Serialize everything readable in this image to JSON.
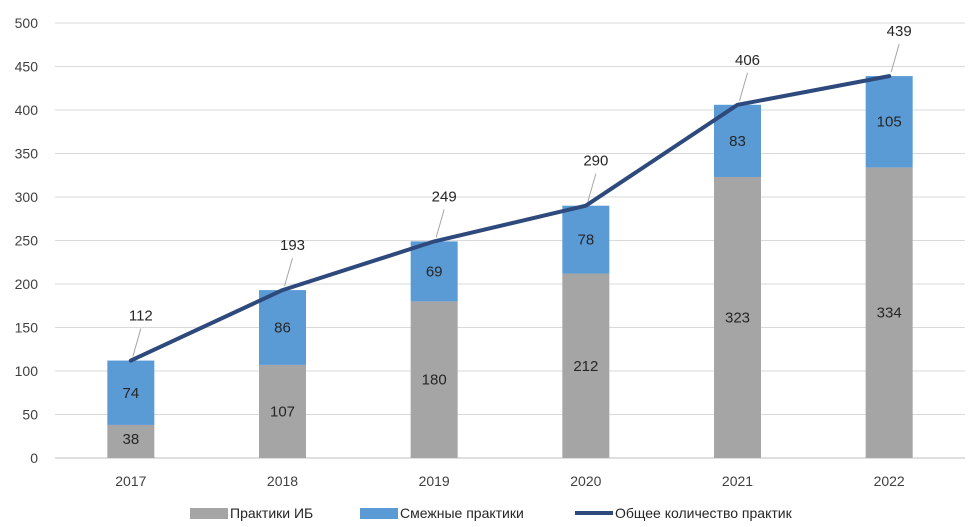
{
  "chart_data": {
    "type": "bar",
    "stacked": true,
    "categories": [
      "2017",
      "2018",
      "2019",
      "2020",
      "2021",
      "2022"
    ],
    "series": [
      {
        "name": "Практики ИБ",
        "type": "bar",
        "color": "#a5a5a5",
        "values": [
          38,
          107,
          180,
          212,
          323,
          334
        ]
      },
      {
        "name": "Смежные практики",
        "type": "bar",
        "color": "#5b9bd5",
        "values": [
          74,
          86,
          69,
          78,
          83,
          105
        ]
      },
      {
        "name": "Общее количество практик",
        "type": "line",
        "color": "#2e4a7d",
        "values": [
          112,
          193,
          249,
          290,
          406,
          439
        ]
      }
    ],
    "ylim": [
      0,
      500
    ],
    "yticks": [
      0,
      50,
      100,
      150,
      200,
      250,
      300,
      350,
      400,
      450,
      500
    ],
    "grid": true,
    "legend": "bottom"
  }
}
